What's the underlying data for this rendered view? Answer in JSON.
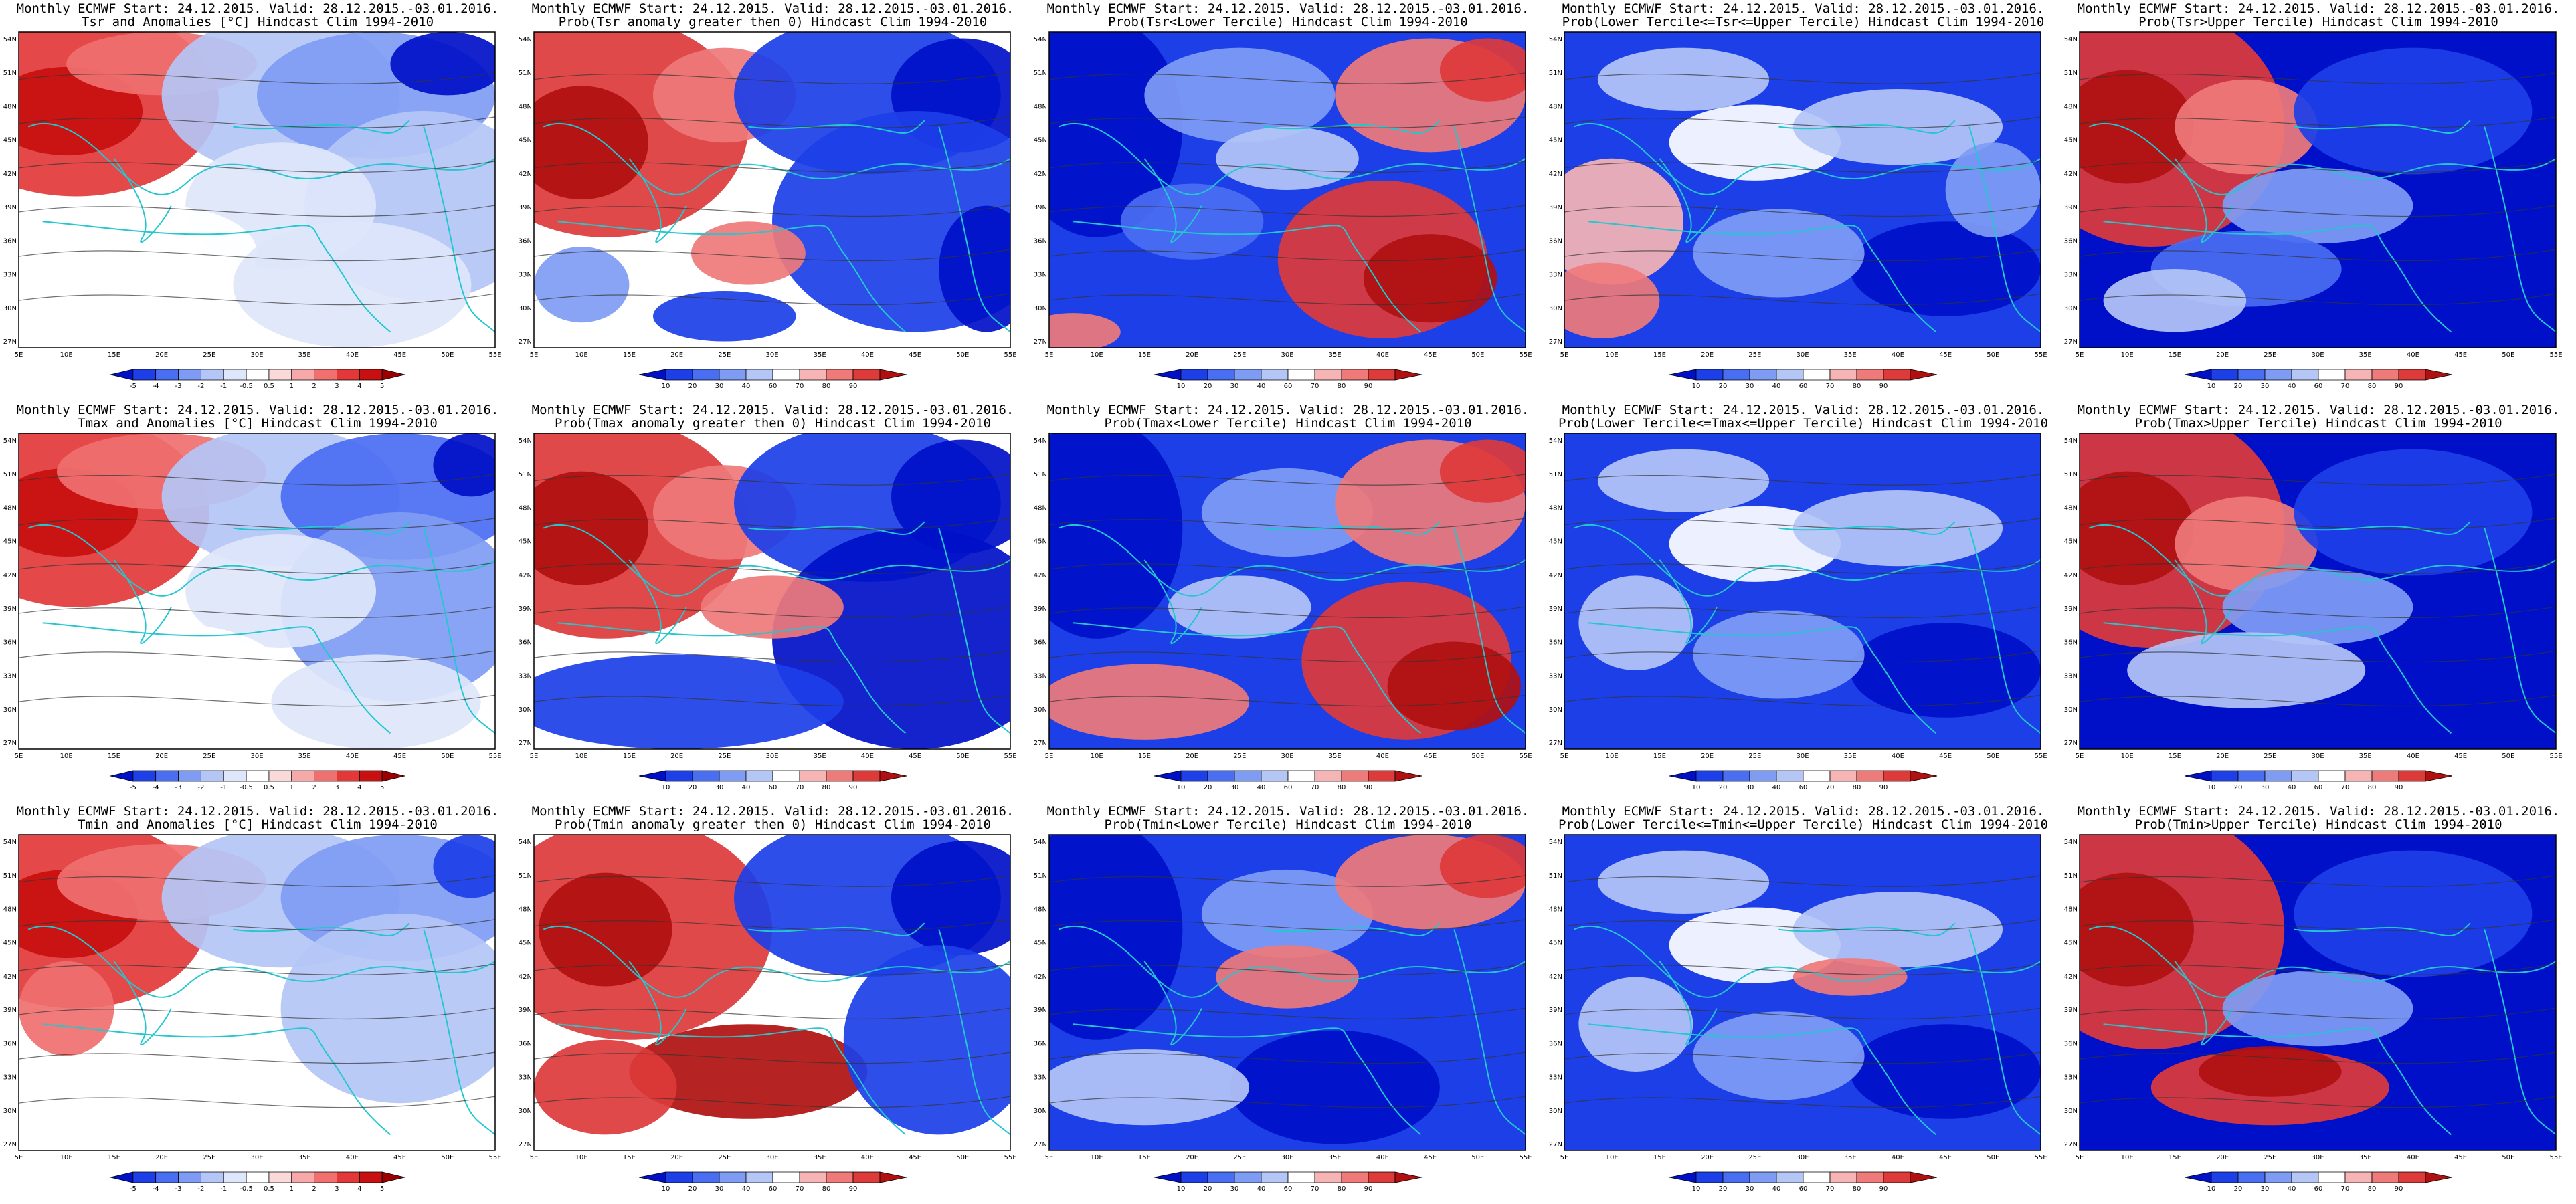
{
  "title_line1": "Monthly ECMWF Start: 24.12.2015. Valid: 28.12.2015.-03.01.2016.",
  "lat_labels": [
    "54N",
    "51N",
    "48N",
    "45N",
    "42N",
    "39N",
    "36N",
    "33N",
    "30N",
    "27N"
  ],
  "lon_labels": [
    "5E",
    "10E",
    "15E",
    "20E",
    "25E",
    "30E",
    "35E",
    "40E",
    "45E",
    "50E",
    "55E"
  ],
  "anomaly_colorbar": [
    "-5",
    "-4",
    "-3",
    "-2",
    "-1",
    "-0.5",
    "0.5",
    "1",
    "2",
    "3",
    "4",
    "5"
  ],
  "prob_colorbar": [
    "10",
    "20",
    "30",
    "40",
    "60",
    "70",
    "80",
    "90"
  ],
  "colors": {
    "anomaly": [
      "#0010c8",
      "#1c3fe8",
      "#4a6ef2",
      "#7f9cf4",
      "#b4c6f6",
      "#dde6fa",
      "#ffffff",
      "#fbd9d9",
      "#f7a8a8",
      "#f07070",
      "#e33838",
      "#c81010",
      "#9a0000"
    ],
    "prob": [
      "#0010c8",
      "#1c3fe8",
      "#4a6ef2",
      "#7f9cf4",
      "#b4c6f6",
      "#ffffff",
      "#f7b4b4",
      "#ef7a7a",
      "#dd3a3a",
      "#b01010"
    ]
  },
  "rows": [
    {
      "var": "Tsr",
      "panels": [
        {
          "title2": "Tsr and Anomalies [°C] Hindcast Clim 1994-2010",
          "kind": "anomaly"
        },
        {
          "title2": "Prob(Tsr anomaly greater then 0) Hindcast Clim 1994-2010",
          "kind": "prob"
        },
        {
          "title2": "Prob(Tsr<Lower Tercile) Hindcast Clim 1994-2010",
          "kind": "prob"
        },
        {
          "title2": "Prob(Lower Tercile<=Tsr<=Upper Tercile) Hindcast Clim 1994-2010",
          "kind": "prob"
        },
        {
          "title2": "Prob(Tsr>Upper Tercile) Hindcast Clim 1994-2010",
          "kind": "prob"
        }
      ]
    },
    {
      "var": "Tmax",
      "panels": [
        {
          "title2": "Tmax and Anomalies [°C] Hindcast Clim 1994-2010",
          "kind": "anomaly"
        },
        {
          "title2": "Prob(Tmax anomaly greater then 0) Hindcast Clim 1994-2010",
          "kind": "prob"
        },
        {
          "title2": "Prob(Tmax<Lower Tercile) Hindcast Clim 1994-2010",
          "kind": "prob"
        },
        {
          "title2": "Prob(Lower Tercile<=Tmax<=Upper Tercile) Hindcast Clim 1994-2010",
          "kind": "prob"
        },
        {
          "title2": "Prob(Tmax>Upper Tercile) Hindcast Clim 1994-2010",
          "kind": "prob"
        }
      ]
    },
    {
      "var": "Tmin",
      "panels": [
        {
          "title2": "Tmin and Anomalies [°C] Hindcast Clim 1994-2010",
          "kind": "anomaly"
        },
        {
          "title2": "Prob(Tmin anomaly greater then 0) Hindcast Clim 1994-2010",
          "kind": "prob"
        },
        {
          "title2": "Prob(Tmin<Lower Tercile) Hindcast Clim 1994-2010",
          "kind": "prob"
        },
        {
          "title2": "Prob(Lower Tercile<=Tmin<=Upper Tercile) Hindcast Clim 1994-2010",
          "kind": "prob"
        },
        {
          "title2": "Prob(Tmin>Upper Tercile) Hindcast Clim 1994-2010",
          "kind": "prob"
        }
      ]
    }
  ]
}
